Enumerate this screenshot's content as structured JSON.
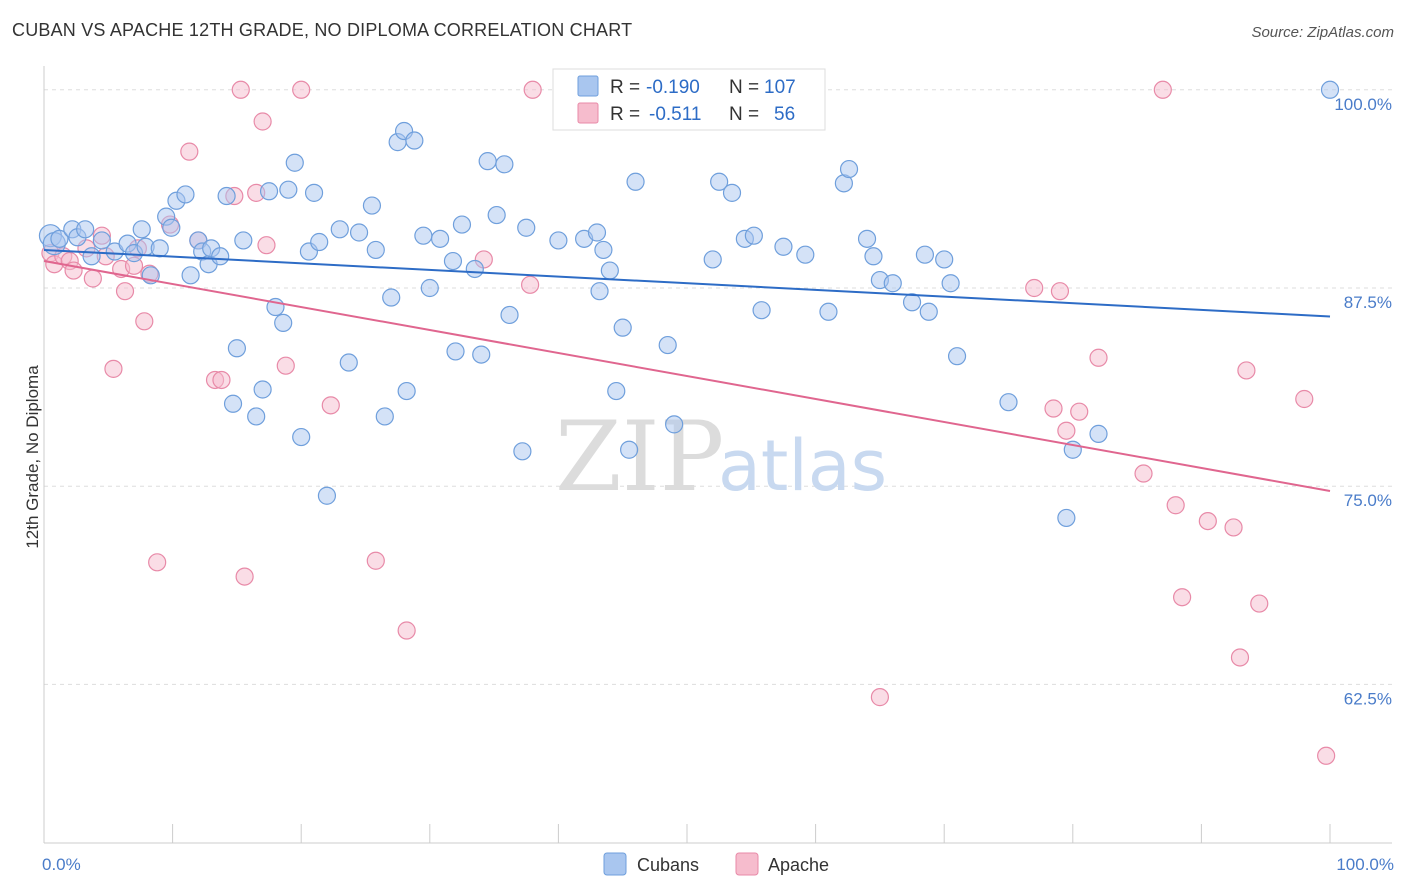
{
  "title": "CUBAN VS APACHE 12TH GRADE, NO DIPLOMA CORRELATION CHART",
  "source": "Source: ZipAtlas.com",
  "watermark": {
    "zip": "ZIP",
    "atlas": "atlas"
  },
  "colors": {
    "cubans_fill": "#a9c6ef",
    "cubans_stroke": "#6f9fdc",
    "cubans_line": "#2d6cc6",
    "apache_fill": "#f6bccd",
    "apache_stroke": "#e88aa8",
    "apache_line": "#e0668f",
    "grid": "#dddddd",
    "tick_text": "#4a7cc9"
  },
  "legend": {
    "r_label": "R =",
    "n_label": "N =",
    "cubans": {
      "r": "-0.190",
      "n": "107"
    },
    "apache": {
      "r": "-0.511",
      "n": "56"
    }
  },
  "bottom_legend": [
    "Cubans",
    "Apache"
  ],
  "chart_data": {
    "type": "scatter",
    "title": "CUBAN VS APACHE 12TH GRADE, NO DIPLOMA CORRELATION CHART",
    "xlabel": "",
    "ylabel": "12th Grade, No Diploma",
    "xlim": [
      0,
      100
    ],
    "ylim": [
      52.5,
      101.5
    ],
    "x_tick_labels": [
      "0.0%",
      "100.0%"
    ],
    "y_ticks": [
      {
        "value": 100,
        "label": "100.0%"
      },
      {
        "value": 87.5,
        "label": "87.5%"
      },
      {
        "value": 75,
        "label": "75.0%"
      },
      {
        "value": 62.5,
        "label": "62.5%"
      }
    ],
    "grid": "horizontal dashed",
    "legend_position": "top-center",
    "series": [
      {
        "name": "Cubans",
        "trend": {
          "x": [
            0,
            100
          ],
          "y": [
            89.9,
            85.7
          ]
        },
        "points": [
          [
            0.5,
            90.8
          ],
          [
            0.8,
            90.3
          ],
          [
            1.2,
            90.6
          ],
          [
            2.2,
            91.2
          ],
          [
            2.6,
            90.7
          ],
          [
            3.2,
            91.2
          ],
          [
            3.7,
            89.5
          ],
          [
            4.5,
            90.5
          ],
          [
            5.5,
            89.8
          ],
          [
            6.5,
            90.3
          ],
          [
            7,
            89.7
          ],
          [
            7.6,
            91.2
          ],
          [
            7.9,
            90.1
          ],
          [
            8.3,
            88.3
          ],
          [
            9,
            90
          ],
          [
            9.5,
            92
          ],
          [
            9.9,
            91.3
          ],
          [
            10.3,
            93
          ],
          [
            11,
            93.4
          ],
          [
            11.4,
            88.3
          ],
          [
            12,
            90.5
          ],
          [
            12.3,
            89.8
          ],
          [
            12.8,
            89
          ],
          [
            13,
            90
          ],
          [
            13.7,
            89.5
          ],
          [
            14.2,
            93.3
          ],
          [
            14.7,
            80.2
          ],
          [
            15,
            83.7
          ],
          [
            15.5,
            90.5
          ],
          [
            16.5,
            79.4
          ],
          [
            17,
            81.1
          ],
          [
            17.5,
            93.6
          ],
          [
            18,
            86.3
          ],
          [
            18.6,
            85.3
          ],
          [
            19,
            93.7
          ],
          [
            19.5,
            95.4
          ],
          [
            20,
            78.1
          ],
          [
            20.6,
            89.8
          ],
          [
            21,
            93.5
          ],
          [
            21.4,
            90.4
          ],
          [
            22,
            74.4
          ],
          [
            23,
            91.2
          ],
          [
            23.7,
            82.8
          ],
          [
            24.5,
            91
          ],
          [
            25.5,
            92.7
          ],
          [
            25.8,
            89.9
          ],
          [
            26.5,
            79.4
          ],
          [
            27,
            86.9
          ],
          [
            27.5,
            96.7
          ],
          [
            28,
            97.4
          ],
          [
            28.2,
            81
          ],
          [
            28.8,
            96.8
          ],
          [
            29.5,
            90.8
          ],
          [
            30,
            87.5
          ],
          [
            30.8,
            90.6
          ],
          [
            31.8,
            89.2
          ],
          [
            32,
            83.5
          ],
          [
            32.5,
            91.5
          ],
          [
            33.5,
            88.7
          ],
          [
            34,
            83.3
          ],
          [
            34.5,
            95.5
          ],
          [
            35.2,
            92.1
          ],
          [
            35.8,
            95.3
          ],
          [
            36.2,
            85.8
          ],
          [
            37.2,
            77.2
          ],
          [
            37.5,
            91.3
          ],
          [
            40,
            90.5
          ],
          [
            42,
            90.6
          ],
          [
            43,
            91
          ],
          [
            43.2,
            87.3
          ],
          [
            43.5,
            89.9
          ],
          [
            44,
            88.6
          ],
          [
            44.5,
            81
          ],
          [
            45,
            85
          ],
          [
            45.5,
            77.3
          ],
          [
            46,
            94.2
          ],
          [
            48.5,
            83.9
          ],
          [
            49,
            78.9
          ],
          [
            52,
            89.3
          ],
          [
            52.5,
            94.2
          ],
          [
            53.5,
            93.5
          ],
          [
            54.5,
            90.6
          ],
          [
            55.2,
            90.8
          ],
          [
            55.8,
            86.1
          ],
          [
            57.5,
            90.1
          ],
          [
            59.2,
            89.6
          ],
          [
            61,
            86
          ],
          [
            62.2,
            94.1
          ],
          [
            62.6,
            95
          ],
          [
            64,
            90.6
          ],
          [
            64.5,
            89.5
          ],
          [
            65,
            88
          ],
          [
            66,
            87.8
          ],
          [
            67.5,
            86.6
          ],
          [
            68.5,
            89.6
          ],
          [
            68.8,
            86
          ],
          [
            70,
            89.3
          ],
          [
            70.5,
            87.8
          ],
          [
            71,
            83.2
          ],
          [
            75,
            80.3
          ],
          [
            79.5,
            73
          ],
          [
            80,
            77.3
          ],
          [
            82,
            78.3
          ],
          [
            100,
            100
          ]
        ]
      },
      {
        "name": "Apache",
        "trend": {
          "x": [
            0,
            100
          ],
          "y": [
            89.2,
            74.7
          ]
        },
        "points": [
          [
            0.5,
            89.7
          ],
          [
            0.8,
            89
          ],
          [
            1.5,
            89.5
          ],
          [
            2,
            89.2
          ],
          [
            2.3,
            88.6
          ],
          [
            3.3,
            90
          ],
          [
            3.8,
            88.1
          ],
          [
            4.5,
            90.8
          ],
          [
            4.8,
            89.5
          ],
          [
            5.4,
            82.4
          ],
          [
            6,
            88.7
          ],
          [
            6.3,
            87.3
          ],
          [
            7,
            88.9
          ],
          [
            7.3,
            90
          ],
          [
            7.8,
            85.4
          ],
          [
            8.2,
            88.4
          ],
          [
            8.8,
            70.2
          ],
          [
            9.8,
            91.5
          ],
          [
            11.3,
            96.1
          ],
          [
            12,
            90.5
          ],
          [
            13.3,
            81.7
          ],
          [
            13.8,
            81.7
          ],
          [
            14.8,
            93.3
          ],
          [
            15.3,
            100
          ],
          [
            15.6,
            69.3
          ],
          [
            16.5,
            93.5
          ],
          [
            17,
            98
          ],
          [
            17.3,
            90.2
          ],
          [
            18.8,
            82.6
          ],
          [
            20,
            100
          ],
          [
            22.3,
            80.1
          ],
          [
            25.8,
            70.3
          ],
          [
            28.2,
            65.9
          ],
          [
            34.2,
            89.3
          ],
          [
            37.8,
            87.7
          ],
          [
            38,
            100
          ],
          [
            65,
            61.7
          ],
          [
            77,
            87.5
          ],
          [
            78.5,
            79.9
          ],
          [
            79,
            87.3
          ],
          [
            79.5,
            78.5
          ],
          [
            80.5,
            79.7
          ],
          [
            82,
            83.1
          ],
          [
            85.5,
            75.8
          ],
          [
            87,
            100
          ],
          [
            88,
            73.8
          ],
          [
            88.5,
            68
          ],
          [
            90.5,
            72.8
          ],
          [
            92.5,
            72.4
          ],
          [
            93,
            64.2
          ],
          [
            93.5,
            82.3
          ],
          [
            94.5,
            67.6
          ],
          [
            98,
            80.5
          ],
          [
            99.7,
            58
          ]
        ]
      }
    ]
  }
}
